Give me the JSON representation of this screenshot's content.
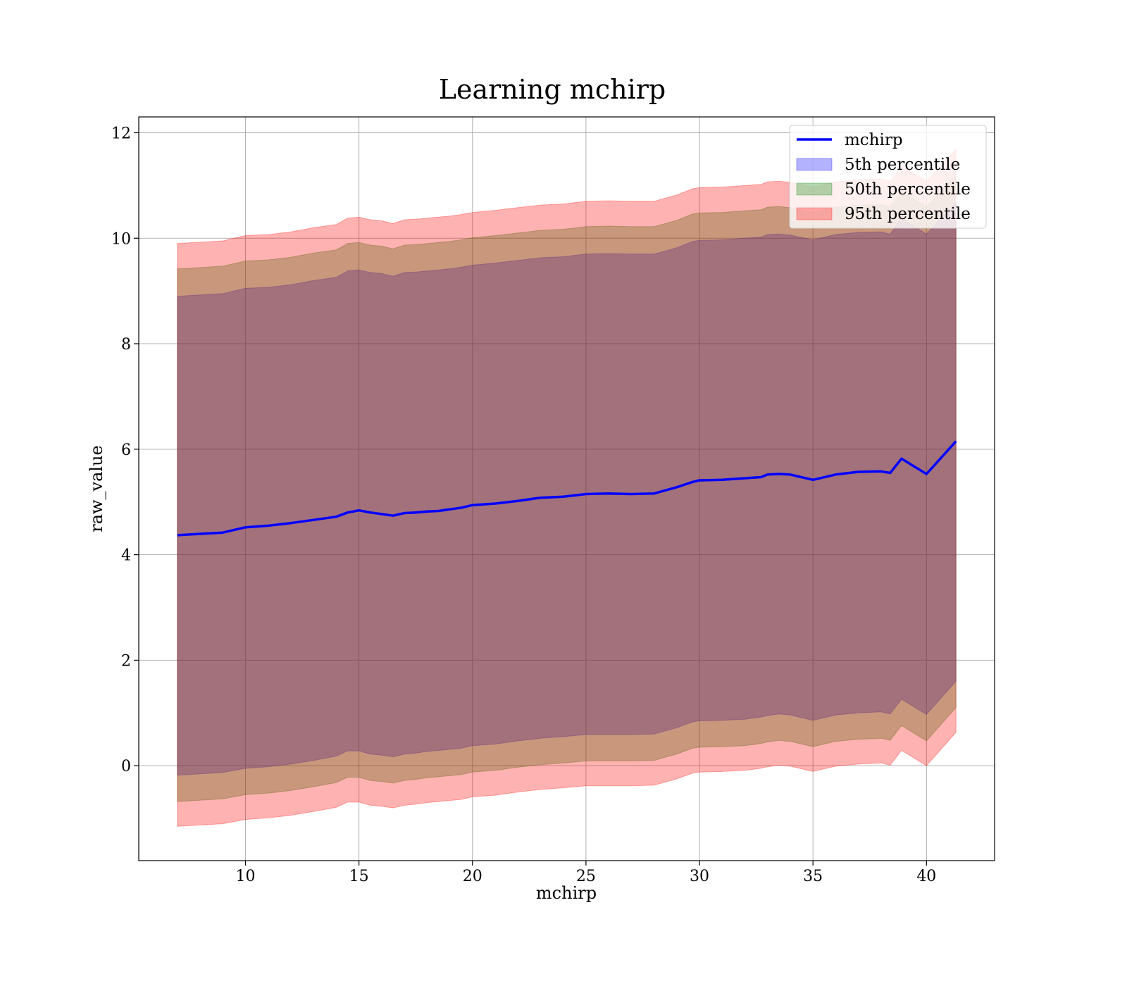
{
  "chart_data": {
    "type": "area",
    "title": "Learning mchirp",
    "xlabel": "mchirp",
    "ylabel": "raw_value",
    "xlim": [
      5.3,
      43.0
    ],
    "ylim": [
      -1.8,
      12.3
    ],
    "xticks": [
      10,
      15,
      20,
      25,
      30,
      35,
      40
    ],
    "yticks": [
      0,
      2,
      4,
      6,
      8,
      10,
      12
    ],
    "grid": true,
    "legend_position": "top-right",
    "x": [
      7.0,
      9.0,
      10.0,
      11.0,
      12.0,
      13.0,
      14.0,
      14.5,
      15.0,
      15.5,
      16.0,
      16.5,
      17.0,
      17.5,
      18.0,
      18.5,
      19.0,
      19.5,
      20.0,
      21.0,
      22.0,
      23.0,
      24.0,
      25.0,
      26.0,
      27.0,
      28.0,
      29.0,
      29.7,
      30.0,
      31.0,
      32.0,
      32.7,
      33.0,
      33.5,
      34.0,
      35.0,
      36.0,
      37.0,
      38.0,
      38.4,
      38.9,
      40.0,
      41.3
    ],
    "series": [
      {
        "name": "mchirp",
        "kind": "line",
        "color": "#0000ff",
        "values": [
          4.37,
          4.42,
          4.52,
          4.55,
          4.6,
          4.66,
          4.72,
          4.8,
          4.84,
          4.8,
          4.77,
          4.74,
          4.79,
          4.8,
          4.82,
          4.83,
          4.86,
          4.89,
          4.94,
          4.97,
          5.02,
          5.08,
          5.1,
          5.15,
          5.16,
          5.15,
          5.16,
          5.28,
          5.38,
          5.41,
          5.42,
          5.45,
          5.47,
          5.52,
          5.53,
          5.52,
          5.42,
          5.52,
          5.57,
          5.58,
          5.55,
          5.82,
          5.53,
          6.15
        ]
      },
      {
        "name": "5th percentile",
        "kind": "band",
        "color": "#0000ff",
        "lower": [
          -0.18,
          -0.13,
          -0.05,
          -0.02,
          0.03,
          0.1,
          0.18,
          0.28,
          0.28,
          0.22,
          0.2,
          0.17,
          0.22,
          0.24,
          0.27,
          0.29,
          0.31,
          0.33,
          0.38,
          0.41,
          0.47,
          0.52,
          0.55,
          0.59,
          0.59,
          0.59,
          0.6,
          0.72,
          0.83,
          0.85,
          0.86,
          0.88,
          0.92,
          0.95,
          0.98,
          0.96,
          0.86,
          0.96,
          1.0,
          1.02,
          0.98,
          1.26,
          0.97,
          1.6
        ],
        "upper": [
          8.9,
          8.95,
          9.05,
          9.07,
          9.12,
          9.2,
          9.26,
          9.38,
          9.4,
          9.35,
          9.33,
          9.28,
          9.35,
          9.36,
          9.38,
          9.4,
          9.42,
          9.45,
          9.49,
          9.53,
          9.58,
          9.63,
          9.65,
          9.7,
          9.71,
          9.7,
          9.7,
          9.82,
          9.94,
          9.96,
          9.97,
          10.0,
          10.02,
          10.07,
          10.08,
          10.06,
          9.97,
          10.07,
          10.11,
          10.12,
          10.08,
          10.37,
          10.08,
          10.68
        ]
      },
      {
        "name": "50th percentile",
        "kind": "band",
        "color": "#008000",
        "lower": [
          -0.68,
          -0.63,
          -0.55,
          -0.52,
          -0.47,
          -0.4,
          -0.32,
          -0.22,
          -0.22,
          -0.28,
          -0.3,
          -0.33,
          -0.28,
          -0.26,
          -0.23,
          -0.21,
          -0.19,
          -0.17,
          -0.12,
          -0.09,
          -0.03,
          0.02,
          0.05,
          0.09,
          0.09,
          0.09,
          0.1,
          0.22,
          0.33,
          0.35,
          0.36,
          0.38,
          0.42,
          0.45,
          0.48,
          0.46,
          0.36,
          0.46,
          0.5,
          0.52,
          0.48,
          0.76,
          0.47,
          1.1
        ],
        "upper": [
          9.42,
          9.47,
          9.57,
          9.59,
          9.64,
          9.72,
          9.78,
          9.9,
          9.92,
          9.87,
          9.85,
          9.8,
          9.87,
          9.88,
          9.9,
          9.92,
          9.94,
          9.97,
          10.01,
          10.05,
          10.1,
          10.15,
          10.17,
          10.22,
          10.23,
          10.22,
          10.22,
          10.34,
          10.46,
          10.48,
          10.49,
          10.52,
          10.54,
          10.59,
          10.6,
          10.58,
          10.49,
          10.59,
          10.63,
          10.64,
          10.6,
          10.89,
          10.6,
          11.2
        ]
      },
      {
        "name": "95th percentile",
        "kind": "band",
        "color": "#ff0000",
        "lower": [
          -1.15,
          -1.1,
          -1.02,
          -0.99,
          -0.94,
          -0.87,
          -0.79,
          -0.69,
          -0.69,
          -0.75,
          -0.77,
          -0.8,
          -0.75,
          -0.73,
          -0.7,
          -0.68,
          -0.66,
          -0.64,
          -0.59,
          -0.56,
          -0.5,
          -0.45,
          -0.42,
          -0.38,
          -0.38,
          -0.38,
          -0.37,
          -0.25,
          -0.14,
          -0.12,
          -0.11,
          -0.09,
          -0.05,
          -0.02,
          0.01,
          -0.01,
          -0.11,
          -0.01,
          0.03,
          0.05,
          0.01,
          0.29,
          0.0,
          0.63
        ],
        "upper": [
          9.9,
          9.95,
          10.05,
          10.07,
          10.12,
          10.2,
          10.26,
          10.38,
          10.4,
          10.35,
          10.33,
          10.28,
          10.35,
          10.36,
          10.38,
          10.4,
          10.42,
          10.45,
          10.49,
          10.53,
          10.58,
          10.63,
          10.65,
          10.7,
          10.71,
          10.7,
          10.7,
          10.82,
          10.94,
          10.96,
          10.97,
          11.0,
          11.02,
          11.07,
          11.08,
          11.06,
          10.97,
          11.07,
          11.11,
          11.12,
          11.08,
          11.37,
          11.08,
          11.68
        ]
      }
    ]
  }
}
